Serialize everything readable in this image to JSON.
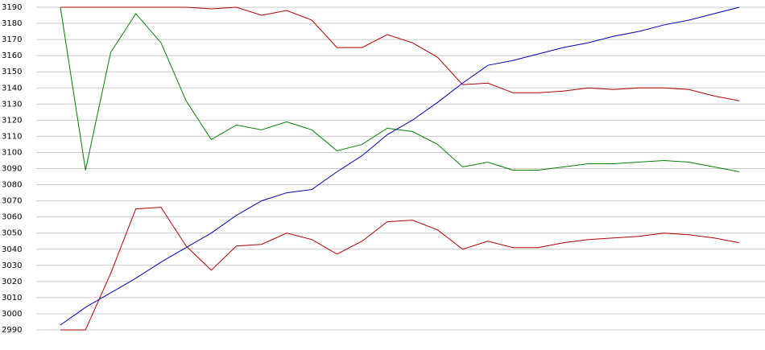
{
  "chart_data": {
    "type": "line",
    "categories": [
      null,
      null,
      null,
      null,
      null,
      null,
      null,
      null,
      null,
      null,
      null,
      null,
      null,
      null,
      null,
      null,
      null,
      null,
      null,
      null,
      null,
      null,
      null,
      null,
      null,
      null,
      null,
      null
    ],
    "series": [
      {
        "color": "#b00000",
        "values": [
          3190,
          3190,
          3190,
          3190,
          3190,
          3190,
          3189,
          3190,
          3185,
          3188,
          3182,
          3165,
          3165,
          3173,
          3168,
          3159,
          3142,
          3143,
          3137,
          3137,
          3138,
          3140,
          3139,
          3140,
          3140,
          3139,
          3135,
          3132
        ]
      },
      {
        "color": "#008000",
        "values": [
          3190,
          3089,
          3162,
          3186,
          3168,
          3132,
          3108,
          3117,
          3114,
          3119,
          3114,
          3101,
          3105,
          3115,
          3113,
          3105,
          3091,
          3094,
          3089,
          3089,
          3091,
          3093,
          3093,
          3094,
          3095,
          3094,
          3091,
          3088
        ]
      },
      {
        "color": "#0000b0",
        "values": [
          2993,
          3004,
          3013,
          3022,
          3032,
          3041,
          3050,
          3061,
          3070,
          3075,
          3077,
          3088,
          3098,
          3111,
          3120,
          3131,
          3143,
          3154,
          3157,
          3161,
          3165,
          3168,
          3172,
          3175,
          3179,
          3182,
          3186,
          3190
        ]
      },
      {
        "color": "#b00000",
        "values": [
          2990,
          2990,
          3025,
          3065,
          3066,
          3042,
          3027,
          3042,
          3043,
          3050,
          3046,
          3037,
          3045,
          3057,
          3058,
          3052,
          3040,
          3045,
          3041,
          3041,
          3044,
          3046,
          3047,
          3048,
          3050,
          3049,
          3047,
          3044
        ]
      }
    ],
    "ylim": [
      2990,
      3190
    ],
    "yticks": [
      2990,
      3000,
      3010,
      3020,
      3030,
      3040,
      3050,
      3060,
      3070,
      3080,
      3090,
      3100,
      3110,
      3120,
      3130,
      3140,
      3150,
      3160,
      3170,
      3180,
      3190
    ],
    "grid": true
  }
}
